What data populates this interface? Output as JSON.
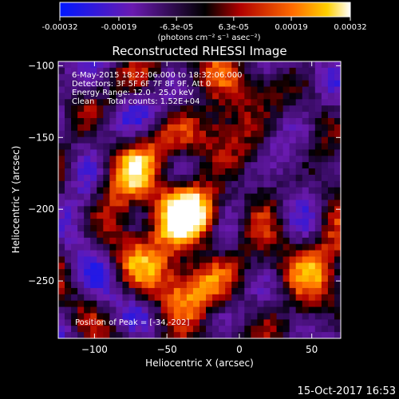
{
  "colorbar": {
    "tick_labels": [
      "-0.00032",
      "-0.00019",
      "-6.3e-05",
      "6.3e-05",
      "0.00019",
      "0.00032"
    ],
    "tick_values": [
      -0.00032,
      -0.00019,
      -6.3e-05,
      6.3e-05,
      0.00019,
      0.00032
    ],
    "range": [
      -0.00032,
      0.00032
    ],
    "units_label": "(photons cm⁻² s⁻¹ asec⁻²)"
  },
  "chart_data": {
    "type": "heatmap",
    "title": "Reconstructed RHESSI Image",
    "xlabel": "Heliocentric X (arcsec)",
    "ylabel": "Heliocentric Y (arcsec)",
    "xlim": [
      -125,
      70
    ],
    "ylim": [
      -290,
      -97
    ],
    "x_ticks": [
      -100,
      -50,
      0,
      50
    ],
    "x_tick_labels": [
      "−100",
      "−50",
      "0",
      "50"
    ],
    "y_ticks": [
      -100,
      -150,
      -200,
      -250
    ],
    "y_tick_labels": [
      "−100",
      "−150",
      "−200",
      "−250"
    ],
    "colormap": "RHESSI diverging: blue (negative) → purple → black (zero) → red → orange → yellow → white (positive)",
    "sources": [
      {
        "x": -34,
        "y": -202,
        "brightness": "peak"
      },
      {
        "x": -55,
        "y": -230
      },
      {
        "x": -70,
        "y": -175
      },
      {
        "x": -30,
        "y": -270
      },
      {
        "x": -10,
        "y": -130
      },
      {
        "x": 45,
        "y": -240
      }
    ],
    "annotations": [
      "6-May-2015 18:22:06.000 to 18:32:06.000",
      "Detectors: 3F 5F 6F 7F 8F 9F, Att 0",
      "Energy Range: 12.0 - 25.0 keV",
      "Clean     Total counts: 1.52E+04"
    ],
    "peak_label": "Position of Peak = [-34,-202]"
  },
  "footer": {
    "timestamp": "15-Oct-2017 16:53"
  }
}
